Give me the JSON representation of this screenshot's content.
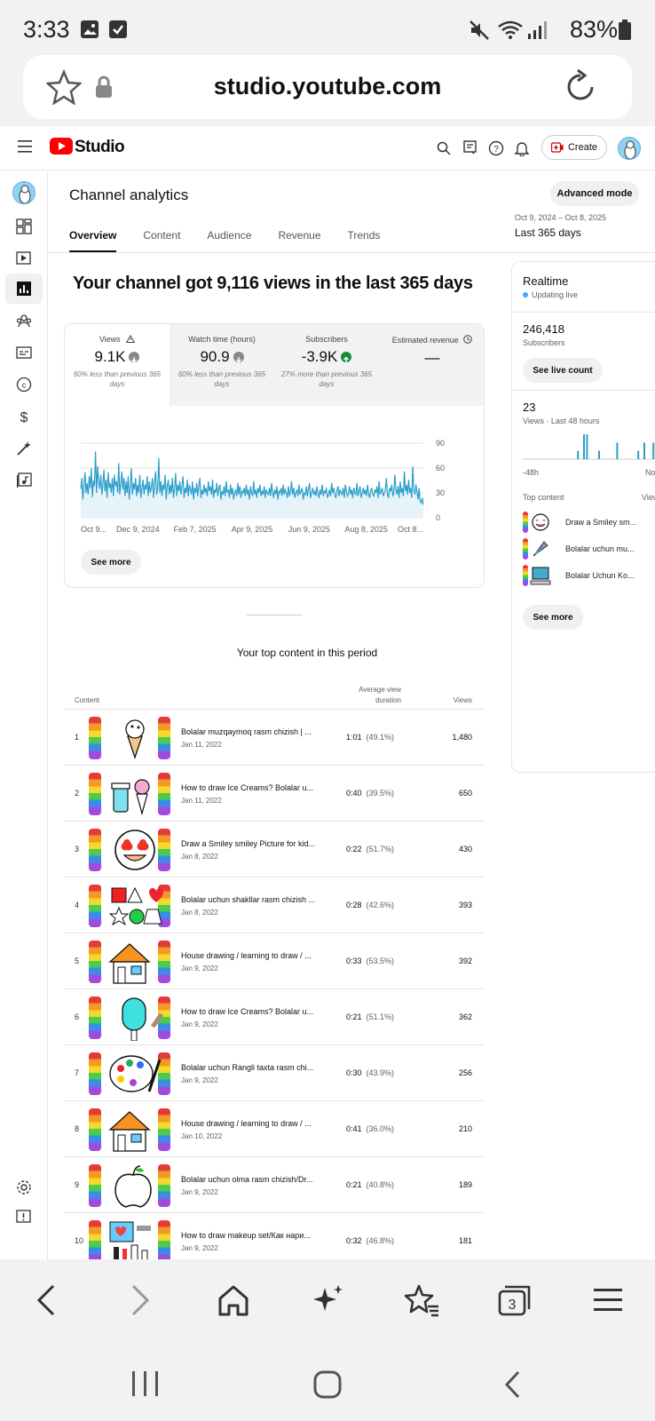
{
  "status_bar": {
    "time": "3:33",
    "battery": "83%"
  },
  "browser": {
    "url": "studio.youtube.com"
  },
  "header": {
    "logo": "Studio",
    "create_label": "Create"
  },
  "page": {
    "title": "Channel analytics",
    "advanced_mode": "Advanced mode",
    "tabs": [
      {
        "label": "Overview"
      },
      {
        "label": "Content"
      },
      {
        "label": "Audience"
      },
      {
        "label": "Revenue"
      },
      {
        "label": "Trends"
      }
    ],
    "date_range": "Oct 9, 2024 – Oct 8, 2025",
    "date_label": "Last 365 days",
    "headline": "Your channel got 9,116 views in the last 365 days"
  },
  "metrics": [
    {
      "label": "Views",
      "value": "9.1K",
      "note": "60% less than previous 365 days",
      "trend": "down"
    },
    {
      "label": "Watch time (hours)",
      "value": "90.9",
      "note": "60% less than previous 365 days",
      "trend": "down"
    },
    {
      "label": "Subscribers",
      "value": "-3.9K",
      "note": "27% more than previous 365 days",
      "trend": "up"
    },
    {
      "label": "Estimated revenue",
      "value": "—",
      "note": "",
      "trend": "none"
    }
  ],
  "overview_see_more": "See more",
  "chart_data": {
    "type": "line",
    "x_ticks": [
      "Oct 9...",
      "Dec 9, 2024",
      "Feb 7, 2025",
      "Apr 9, 2025",
      "Jun 9, 2025",
      "Aug 8, 2025",
      "Oct 8..."
    ],
    "y_ticks": [
      "90",
      "60",
      "30",
      "0"
    ],
    "ylim": [
      0,
      90
    ],
    "values": [
      35,
      48,
      22,
      40,
      55,
      30,
      42,
      28,
      50,
      36,
      60,
      25,
      45,
      38,
      80,
      30,
      62,
      44,
      35,
      52,
      28,
      40,
      58,
      32,
      46,
      24,
      55,
      36,
      42,
      30,
      48,
      26,
      52,
      38,
      44,
      30,
      66,
      28,
      40,
      56,
      34,
      48,
      26,
      44,
      30,
      50,
      22,
      38,
      60,
      28,
      42,
      34,
      48,
      26,
      40,
      30,
      52,
      24,
      36,
      46,
      28,
      40,
      34,
      50,
      26,
      44,
      30,
      38,
      48,
      24,
      42,
      56,
      28,
      36,
      72,
      30,
      44,
      26,
      40,
      34,
      52,
      22,
      38,
      46,
      28,
      40,
      30,
      48,
      24,
      36,
      54,
      26,
      40,
      32,
      44,
      28,
      38,
      50,
      24,
      36,
      30,
      46,
      26,
      40,
      34,
      28,
      44,
      22,
      36,
      30,
      42,
      26,
      38,
      48,
      24,
      34,
      28,
      40,
      30,
      36,
      26,
      44,
      32,
      38,
      28,
      46,
      24,
      34,
      30,
      42,
      26,
      36,
      40,
      22,
      32,
      28,
      38,
      26,
      44,
      30,
      34,
      24,
      40,
      28,
      36,
      22,
      30,
      34,
      26,
      42,
      28,
      38,
      24,
      32,
      30,
      36,
      26,
      40,
      28,
      34,
      22,
      38,
      30,
      26,
      44,
      28,
      34,
      24,
      36,
      30,
      40,
      26,
      32,
      28,
      38,
      24,
      34,
      30,
      28,
      36,
      26,
      42,
      30,
      24,
      34,
      28,
      38,
      22,
      32,
      30,
      36,
      26,
      40,
      28,
      34,
      30,
      24,
      38,
      26,
      32,
      44,
      28,
      36,
      24,
      30,
      34,
      26,
      40,
      28,
      32,
      36,
      22,
      30,
      28,
      38,
      26,
      34,
      42,
      24,
      30,
      36,
      28,
      32,
      26,
      38,
      30,
      24,
      34,
      28,
      40,
      26,
      32,
      30,
      36,
      24,
      28,
      34,
      26,
      42,
      30,
      36,
      28,
      24,
      32,
      38,
      26,
      34,
      30,
      28,
      36,
      24,
      40,
      32,
      26,
      30,
      38,
      28,
      34,
      24,
      36,
      30,
      28,
      42,
      26,
      32,
      38,
      24,
      30,
      36,
      28,
      34,
      26,
      40,
      30,
      24,
      32,
      36,
      28,
      26,
      34,
      30,
      38,
      24,
      44,
      28,
      32,
      36,
      26,
      30,
      34,
      48,
      28,
      24,
      36,
      32,
      40,
      26,
      30,
      52,
      34,
      28,
      38,
      24,
      44,
      30,
      36,
      26,
      56,
      32,
      40,
      28,
      46,
      30,
      36,
      24,
      62,
      34,
      28,
      40,
      30,
      22,
      36,
      20,
      18,
      24,
      16
    ]
  },
  "realtime": {
    "title": "Realtime",
    "updating": "Updating live",
    "subscribers_value": "246,418",
    "subscribers_label": "Subscribers",
    "live_count_label": "See live count",
    "views_value": "23",
    "views_label": "Views · Last 48 hours",
    "axis_start": "-48h",
    "axis_end": "No",
    "top_content_label": "Top content",
    "views_col": "View",
    "bars": [
      0,
      0,
      0,
      0,
      0,
      0,
      0,
      0,
      0,
      0,
      0,
      0,
      0,
      0,
      0,
      0,
      0,
      0,
      1,
      0,
      3,
      3,
      0,
      0,
      0,
      1,
      0,
      0,
      0,
      0,
      0,
      2,
      0,
      0,
      0,
      0,
      0,
      0,
      1,
      0,
      2,
      0,
      0,
      2,
      0,
      0,
      0,
      3,
      0,
      3,
      0,
      0,
      1,
      0,
      0
    ],
    "items": [
      {
        "title": "Draw a Smiley sm..."
      },
      {
        "title": "Bolalar uchun mu..."
      },
      {
        "title": "Bolalar Uchun Ko..."
      }
    ],
    "see_more": "See more"
  },
  "top_content": {
    "title": "Your top content in this period",
    "col_content": "Content",
    "col_avd_line1": "Average view",
    "col_avd_line2": "duration",
    "col_views": "Views",
    "rows": [
      {
        "num": "1",
        "title": "Bolalar muzqaymoq rasm chizish | ...",
        "date": "Jan 11, 2022",
        "avd": "1:01",
        "pct": "(49.1%)",
        "views": "1,480",
        "thumb": "icecream-cone"
      },
      {
        "num": "2",
        "title": "How to draw Ice Creams? Bolalar u...",
        "date": "Jan 11, 2022",
        "avd": "0:40",
        "pct": "(39.5%)",
        "views": "650",
        "thumb": "ice-cream-cups"
      },
      {
        "num": "3",
        "title": "Draw a Smiley smiley Picture for kid...",
        "date": "Jan 8, 2022",
        "avd": "0:22",
        "pct": "(51.7%)",
        "views": "430",
        "thumb": "smiley"
      },
      {
        "num": "4",
        "title": "Bolalar uchun shakllar rasm chizish ...",
        "date": "Jan 8, 2022",
        "avd": "0:28",
        "pct": "(42.6%)",
        "views": "393",
        "thumb": "shapes"
      },
      {
        "num": "5",
        "title": "House drawing / learning to draw / ...",
        "date": "Jan 9, 2022",
        "avd": "0:33",
        "pct": "(53.5%)",
        "views": "392",
        "thumb": "house"
      },
      {
        "num": "6",
        "title": "How to draw Ice Creams? Bolalar u...",
        "date": "Jan 9, 2022",
        "avd": "0:21",
        "pct": "(51.1%)",
        "views": "362",
        "thumb": "popsicle"
      },
      {
        "num": "7",
        "title": "Bolalar uchun Rangli taxta rasm chi...",
        "date": "Jan 9, 2022",
        "avd": "0:30",
        "pct": "(43.9%)",
        "views": "256",
        "thumb": "palette"
      },
      {
        "num": "8",
        "title": "House drawing / learning to draw / ...",
        "date": "Jan 10, 2022",
        "avd": "0:41",
        "pct": "(36.0%)",
        "views": "210",
        "thumb": "house-orange"
      },
      {
        "num": "9",
        "title": "Bolalar uchun olma rasm chizish/Dr...",
        "date": "Jan 9, 2022",
        "avd": "0:21",
        "pct": "(40.8%)",
        "views": "189",
        "thumb": "apple"
      },
      {
        "num": "10",
        "title": "How to draw makeup set/Как нари...",
        "date": "Jan 9, 2022",
        "avd": "0:32",
        "pct": "(46.8%)",
        "views": "181",
        "thumb": "makeup"
      }
    ]
  },
  "colors": {
    "accent_line": "#2b9ec9",
    "youtube_red": "#ff0000",
    "up_green": "#1a8a3a"
  }
}
